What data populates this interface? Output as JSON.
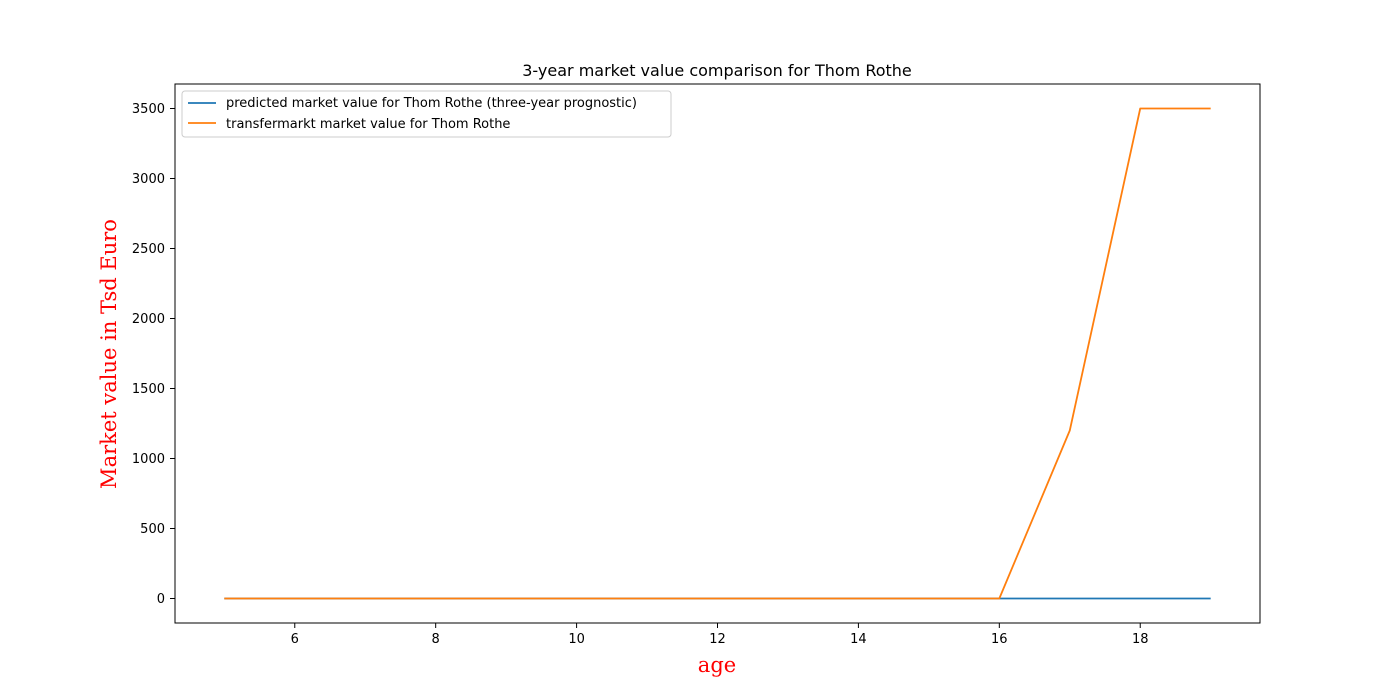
{
  "chart_data": {
    "type": "line",
    "title": "3-year market value comparison for Thom Rothe",
    "xlabel": "age",
    "ylabel": "Market value in Tsd Euro",
    "label_color": "#ff0000",
    "xlim": [
      4.3,
      19.7
    ],
    "ylim": [
      -175,
      3675
    ],
    "xticks": [
      6,
      8,
      10,
      12,
      14,
      16,
      18
    ],
    "yticks": [
      0,
      500,
      1000,
      1500,
      2000,
      2500,
      3000,
      3500
    ],
    "grid": false,
    "legend_position": "upper-left",
    "x": [
      5,
      6,
      7,
      8,
      9,
      10,
      11,
      12,
      13,
      14,
      15,
      16,
      17,
      18,
      19
    ],
    "series": [
      {
        "name": "predicted market value for Thom Rothe (three-year prognostic)",
        "color": "#1f77b4",
        "values": [
          0,
          0,
          0,
          0,
          0,
          0,
          0,
          0,
          0,
          0,
          0,
          0,
          0,
          0,
          0
        ]
      },
      {
        "name": "transfermarkt market value for Thom Rothe",
        "color": "#ff7f0e",
        "values": [
          0,
          0,
          0,
          0,
          0,
          0,
          0,
          0,
          0,
          0,
          0,
          0,
          1200,
          3500,
          3500
        ]
      }
    ]
  }
}
